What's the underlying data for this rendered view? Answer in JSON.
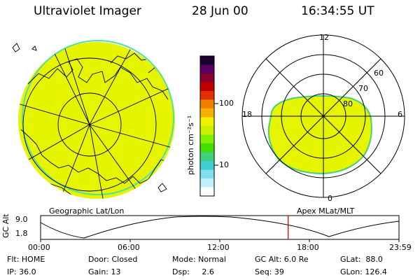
{
  "header": {
    "title": "Ultraviolet Imager",
    "date": "28 Jun 00",
    "time": "16:34:55 UT"
  },
  "colorbar": {
    "unit_label": "photon cm⁻²s⁻¹",
    "tick_100": "100",
    "tick_10": "10",
    "colors": [
      "#1a0030",
      "#5a0060",
      "#8a0030",
      "#c00000",
      "#e03000",
      "#f08000",
      "#f8b000",
      "#f0f000",
      "#c8f000",
      "#80f000",
      "#40e000",
      "#40d080",
      "#40d0d0",
      "#80e0f0",
      "#c0f0f8",
      "#ffffff"
    ]
  },
  "polar_plot": {
    "labels": {
      "top": "12",
      "left": "18",
      "right": "6",
      "bottom": "0"
    },
    "ring_labels": [
      "60",
      "70",
      "80"
    ]
  },
  "plot_labels": {
    "left": "Geographic Lat/Lon",
    "right": "Apex MLat/MLT"
  },
  "gc_alt": {
    "axis_label": "GC Alt",
    "ymax": "9.0",
    "ymin": "1.8",
    "xticks": [
      "00:00",
      "06:00",
      "12:00",
      "18:00",
      "23:59"
    ],
    "current_time_marker_hours": 16.58
  },
  "status": {
    "row1": {
      "flt": "Flt: HOME",
      "door": "Door: Closed",
      "mode": "Mode: Normal",
      "gcalt": "GC Alt: 6.0 Re",
      "glat": "GLat:  88.0"
    },
    "row2": {
      "ip": "IP: 36.0",
      "gain": "Gain: 13",
      "dsp": "Dsp:     2.6",
      "seq": "Seq: 39",
      "glon": "GLon: 126.4"
    }
  }
}
